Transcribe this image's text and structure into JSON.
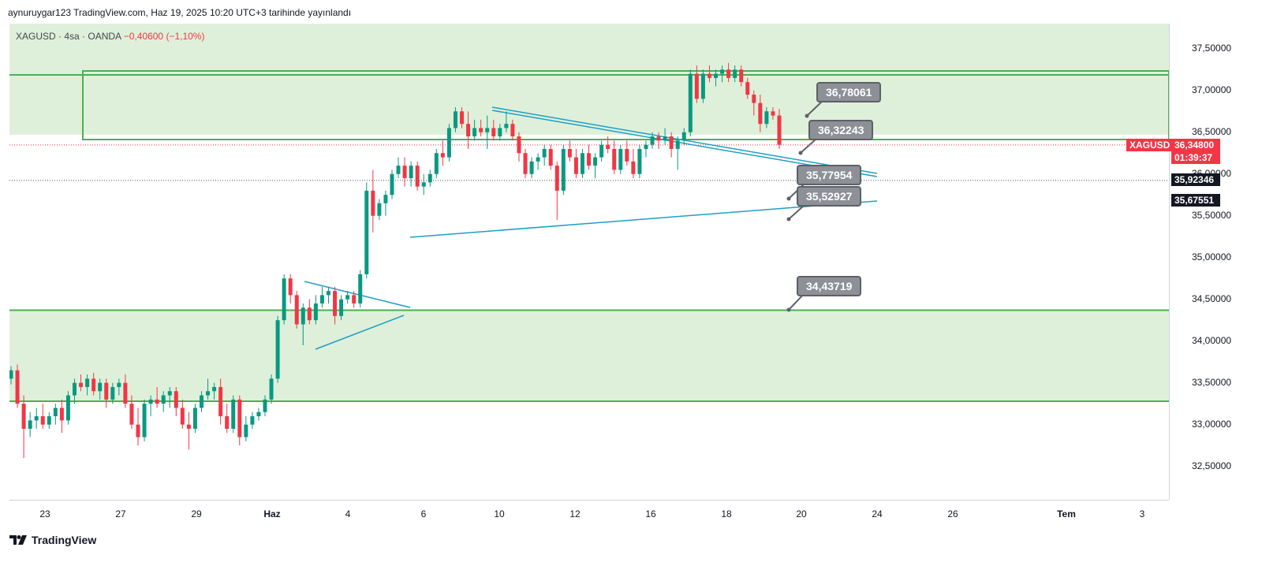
{
  "publisher_text": "aynuruygar123 TradingView.com, Haz 19, 2025 10:20 UTC+3 tarihinde yayınlandı",
  "symbol_info": {
    "name": "XAGUSD · 4sa · OANDA",
    "change": "−0,40600 (−1,10%)"
  },
  "brand": "TradingView",
  "colors": {
    "up": "#089981",
    "down": "#f23645",
    "zone_fill": "#dff0da",
    "zone_line": "#4caf50",
    "trend_line": "#1e9fc4",
    "callout_bg": "#8d9096"
  },
  "chart_data": {
    "type": "candlestick",
    "symbol": "XAGUSD",
    "interval": "4sa",
    "y_range": [
      32.1,
      37.8
    ],
    "y_ticks": [
      "37,50000",
      "37,00000",
      "36,50000",
      "36,00000",
      "35,50000",
      "35,00000",
      "34,50000",
      "34,00000",
      "33,50000",
      "33,00000",
      "32,50000"
    ],
    "x_ticks": [
      {
        "label": "23",
        "bold": false
      },
      {
        "label": "27",
        "bold": false
      },
      {
        "label": "29",
        "bold": false
      },
      {
        "label": "Haz",
        "bold": true
      },
      {
        "label": "4",
        "bold": false
      },
      {
        "label": "6",
        "bold": false
      },
      {
        "label": "10",
        "bold": false
      },
      {
        "label": "12",
        "bold": false
      },
      {
        "label": "16",
        "bold": false
      },
      {
        "label": "18",
        "bold": false
      },
      {
        "label": "20",
        "bold": false
      },
      {
        "label": "24",
        "bold": false
      },
      {
        "label": "26",
        "bold": false
      },
      {
        "label": "Tem",
        "bold": true
      },
      {
        "label": "3",
        "bold": false
      }
    ],
    "price_labels": [
      {
        "symbol": "XAGUSD",
        "value": "36,34800",
        "countdown": "01:39:37",
        "color": "#f23645"
      },
      {
        "value": "35,92346",
        "color": "#131722"
      },
      {
        "value": "35,67551",
        "color": "#131722"
      }
    ],
    "annotations": [
      "36,78061",
      "36,32243",
      "35,77954",
      "35,52927",
      "34,43719"
    ],
    "zones": [
      {
        "from": 36.47,
        "to": 37.8
      },
      {
        "from": 33.28,
        "to": 34.37
      }
    ],
    "candles": [
      [
        33.55,
        33.7,
        33.48,
        33.65
      ],
      [
        33.65,
        33.72,
        33.2,
        33.25
      ],
      [
        33.25,
        33.35,
        32.6,
        32.95
      ],
      [
        32.95,
        33.15,
        32.85,
        33.05
      ],
      [
        33.05,
        33.2,
        32.95,
        33.1
      ],
      [
        33.1,
        33.25,
        32.95,
        33.0
      ],
      [
        33.0,
        33.15,
        32.95,
        33.1
      ],
      [
        33.1,
        33.25,
        33.0,
        33.2
      ],
      [
        33.2,
        33.3,
        32.9,
        33.05
      ],
      [
        33.05,
        33.4,
        33.0,
        33.35
      ],
      [
        33.35,
        33.55,
        33.25,
        33.5
      ],
      [
        33.5,
        33.6,
        33.4,
        33.45
      ],
      [
        33.45,
        33.6,
        33.35,
        33.55
      ],
      [
        33.55,
        33.62,
        33.35,
        33.4
      ],
      [
        33.4,
        33.55,
        33.3,
        33.5
      ],
      [
        33.5,
        33.55,
        33.2,
        33.3
      ],
      [
        33.3,
        33.5,
        33.25,
        33.45
      ],
      [
        33.45,
        33.55,
        33.35,
        33.5
      ],
      [
        33.5,
        33.6,
        33.2,
        33.25
      ],
      [
        33.25,
        33.35,
        32.95,
        33.0
      ],
      [
        33.0,
        33.2,
        32.75,
        32.85
      ],
      [
        32.85,
        33.3,
        32.8,
        33.25
      ],
      [
        33.25,
        33.35,
        33.1,
        33.3
      ],
      [
        33.3,
        33.45,
        33.2,
        33.25
      ],
      [
        33.25,
        33.4,
        33.15,
        33.35
      ],
      [
        33.35,
        33.45,
        33.2,
        33.4
      ],
      [
        33.4,
        33.45,
        33.1,
        33.2
      ],
      [
        33.2,
        33.3,
        32.95,
        33.0
      ],
      [
        33.0,
        33.15,
        32.7,
        32.95
      ],
      [
        32.95,
        33.25,
        32.9,
        33.2
      ],
      [
        33.2,
        33.4,
        33.15,
        33.35
      ],
      [
        33.35,
        33.55,
        33.3,
        33.4
      ],
      [
        33.4,
        33.5,
        33.3,
        33.45
      ],
      [
        33.45,
        33.55,
        33.0,
        33.1
      ],
      [
        33.1,
        33.25,
        32.9,
        32.95
      ],
      [
        32.95,
        33.35,
        32.9,
        33.3
      ],
      [
        33.3,
        33.35,
        32.75,
        32.85
      ],
      [
        32.85,
        33.1,
        32.8,
        33.0
      ],
      [
        33.0,
        33.15,
        32.95,
        33.1
      ],
      [
        33.1,
        33.2,
        33.05,
        33.15
      ],
      [
        33.15,
        33.35,
        33.1,
        33.3
      ],
      [
        33.3,
        33.6,
        33.25,
        33.55
      ],
      [
        33.55,
        34.3,
        33.5,
        34.25
      ],
      [
        34.25,
        34.8,
        34.2,
        34.75
      ],
      [
        34.75,
        34.8,
        34.45,
        34.55
      ],
      [
        34.55,
        34.6,
        34.15,
        34.2
      ],
      [
        34.2,
        34.45,
        33.95,
        34.4
      ],
      [
        34.4,
        34.5,
        34.2,
        34.25
      ],
      [
        34.25,
        34.55,
        34.2,
        34.45
      ],
      [
        34.45,
        34.65,
        34.4,
        34.55
      ],
      [
        34.55,
        34.65,
        34.45,
        34.6
      ],
      [
        34.6,
        34.65,
        34.2,
        34.3
      ],
      [
        34.3,
        34.55,
        34.25,
        34.5
      ],
      [
        34.5,
        34.6,
        34.45,
        34.55
      ],
      [
        34.55,
        34.6,
        34.4,
        34.45
      ],
      [
        34.45,
        34.85,
        34.4,
        34.8
      ],
      [
        34.8,
        35.9,
        34.75,
        35.8
      ],
      [
        35.8,
        36.05,
        35.3,
        35.5
      ],
      [
        35.5,
        35.7,
        35.45,
        35.65
      ],
      [
        35.65,
        35.8,
        35.5,
        35.75
      ],
      [
        35.75,
        36.05,
        35.7,
        36.0
      ],
      [
        36.0,
        36.2,
        35.95,
        36.1
      ],
      [
        36.1,
        36.2,
        35.85,
        35.95
      ],
      [
        35.95,
        36.15,
        35.85,
        36.1
      ],
      [
        36.1,
        36.15,
        35.8,
        35.85
      ],
      [
        35.85,
        36.0,
        35.75,
        35.9
      ],
      [
        35.9,
        36.05,
        35.85,
        36.0
      ],
      [
        36.0,
        36.3,
        35.95,
        36.25
      ],
      [
        36.25,
        36.4,
        36.1,
        36.2
      ],
      [
        36.2,
        36.6,
        36.15,
        36.55
      ],
      [
        36.55,
        36.8,
        36.5,
        36.75
      ],
      [
        36.75,
        36.8,
        36.55,
        36.6
      ],
      [
        36.6,
        36.75,
        36.3,
        36.45
      ],
      [
        36.45,
        36.65,
        36.4,
        36.55
      ],
      [
        36.55,
        36.65,
        36.45,
        36.5
      ],
      [
        36.5,
        36.7,
        36.3,
        36.55
      ],
      [
        36.55,
        36.65,
        36.4,
        36.45
      ],
      [
        36.45,
        36.6,
        36.4,
        36.55
      ],
      [
        36.55,
        36.75,
        36.5,
        36.6
      ],
      [
        36.6,
        36.65,
        36.4,
        36.45
      ],
      [
        36.45,
        36.5,
        36.15,
        36.25
      ],
      [
        36.25,
        36.3,
        35.95,
        36.0
      ],
      [
        36.0,
        36.2,
        35.95,
        36.15
      ],
      [
        36.15,
        36.25,
        36.05,
        36.2
      ],
      [
        36.2,
        36.35,
        36.1,
        36.3
      ],
      [
        36.3,
        36.35,
        36.05,
        36.1
      ],
      [
        36.1,
        36.15,
        35.45,
        35.8
      ],
      [
        35.8,
        36.35,
        35.75,
        36.3
      ],
      [
        36.3,
        36.4,
        36.15,
        36.2
      ],
      [
        36.2,
        36.3,
        35.95,
        36.0
      ],
      [
        36.0,
        36.3,
        35.95,
        36.25
      ],
      [
        36.25,
        36.35,
        36.05,
        36.1
      ],
      [
        36.1,
        36.25,
        35.95,
        36.2
      ],
      [
        36.2,
        36.4,
        36.15,
        36.35
      ],
      [
        36.35,
        36.45,
        36.25,
        36.3
      ],
      [
        36.3,
        36.4,
        36.0,
        36.05
      ],
      [
        36.05,
        36.35,
        36.0,
        36.3
      ],
      [
        36.3,
        36.4,
        36.1,
        36.15
      ],
      [
        36.15,
        36.3,
        35.95,
        36.0
      ],
      [
        36.0,
        36.35,
        35.95,
        36.3
      ],
      [
        36.3,
        36.4,
        36.2,
        36.35
      ],
      [
        36.35,
        36.5,
        36.3,
        36.45
      ],
      [
        36.45,
        36.5,
        36.3,
        36.4
      ],
      [
        36.4,
        36.55,
        36.35,
        36.45
      ],
      [
        36.45,
        36.5,
        36.2,
        36.3
      ],
      [
        36.3,
        36.45,
        36.05,
        36.4
      ],
      [
        36.4,
        36.55,
        36.35,
        36.5
      ],
      [
        36.5,
        37.25,
        36.45,
        37.2
      ],
      [
        37.2,
        37.3,
        36.85,
        36.9
      ],
      [
        36.9,
        37.25,
        36.85,
        37.2
      ],
      [
        37.2,
        37.3,
        37.1,
        37.15
      ],
      [
        37.15,
        37.25,
        37.05,
        37.2
      ],
      [
        37.2,
        37.3,
        37.1,
        37.25
      ],
      [
        37.25,
        37.33,
        37.1,
        37.15
      ],
      [
        37.15,
        37.3,
        37.1,
        37.25
      ],
      [
        37.25,
        37.3,
        37.05,
        37.1
      ],
      [
        37.1,
        37.15,
        36.9,
        36.95
      ],
      [
        36.95,
        37.0,
        36.7,
        36.85
      ],
      [
        36.85,
        36.95,
        36.5,
        36.6
      ],
      [
        36.6,
        36.8,
        36.55,
        36.75
      ],
      [
        36.75,
        36.8,
        36.65,
        36.7
      ],
      [
        36.7,
        36.78,
        36.3,
        36.35
      ]
    ]
  }
}
